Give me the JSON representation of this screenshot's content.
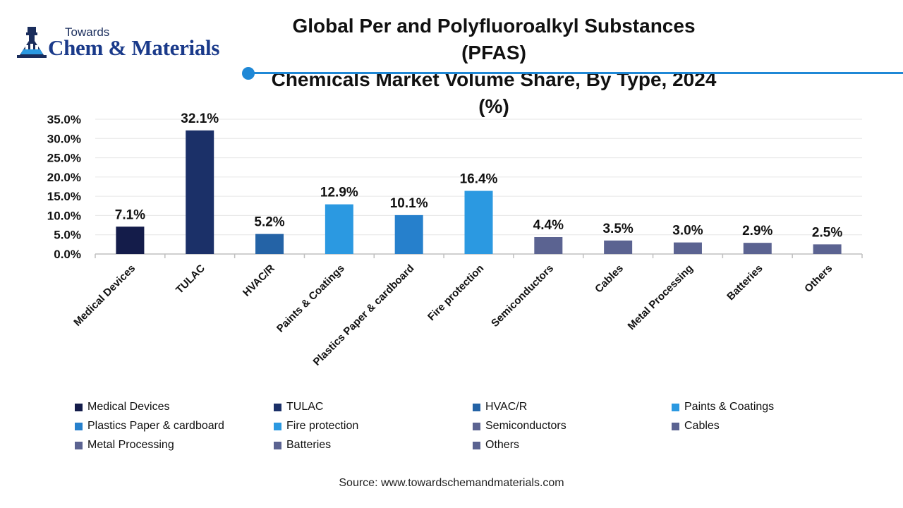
{
  "logo": {
    "line1": "Towards",
    "line2": "Chem & Materials",
    "icon": "flask-building-icon"
  },
  "title": {
    "line1": "Global Per and Polyfluoroalkyl Substances (PFAS)",
    "line2": "Chemicals Market Volume Share, By Type, 2024 (%)"
  },
  "source": "Source: www.towardschemandmaterials.com",
  "colors": {
    "accent": "#1f88d6",
    "grid": "#e6e6e6",
    "axis": "#bfbfbf"
  },
  "chart_data": {
    "type": "bar",
    "title": "Global Per and Polyfluoroalkyl Substances (PFAS) Chemicals Market Volume Share, By Type, 2024 (%)",
    "categories": [
      "Medical Devices",
      "TULAC",
      "HVAC/R",
      "Paints & Coatings",
      "Plastics Paper & cardboard",
      "Fire protection",
      "Semiconductors",
      "Cables",
      "Metal Processing",
      "Batteries",
      "Others"
    ],
    "values": [
      7.1,
      32.1,
      5.2,
      12.9,
      10.1,
      16.4,
      4.4,
      3.5,
      3.0,
      2.9,
      2.5
    ],
    "value_labels": [
      "7.1%",
      "32.1%",
      "5.2%",
      "12.9%",
      "10.1%",
      "16.4%",
      "4.4%",
      "3.5%",
      "3.0%",
      "2.9%",
      "2.5%"
    ],
    "colors": [
      "#141c4a",
      "#1b3068",
      "#2463a6",
      "#2b99e1",
      "#2680cc",
      "#2b99e1",
      "#5b6391",
      "#5b6391",
      "#5b6391",
      "#5b6391",
      "#5b6391"
    ],
    "yticks": [
      0,
      5,
      10,
      15,
      20,
      25,
      30,
      35
    ],
    "ytick_labels": [
      "0.0%",
      "5.0%",
      "10.0%",
      "15.0%",
      "20.0%",
      "25.0%",
      "30.0%",
      "35.0%"
    ],
    "ylim": [
      0,
      35
    ],
    "xlabel": "",
    "ylabel": "",
    "grid": true,
    "legend_position": "bottom"
  }
}
